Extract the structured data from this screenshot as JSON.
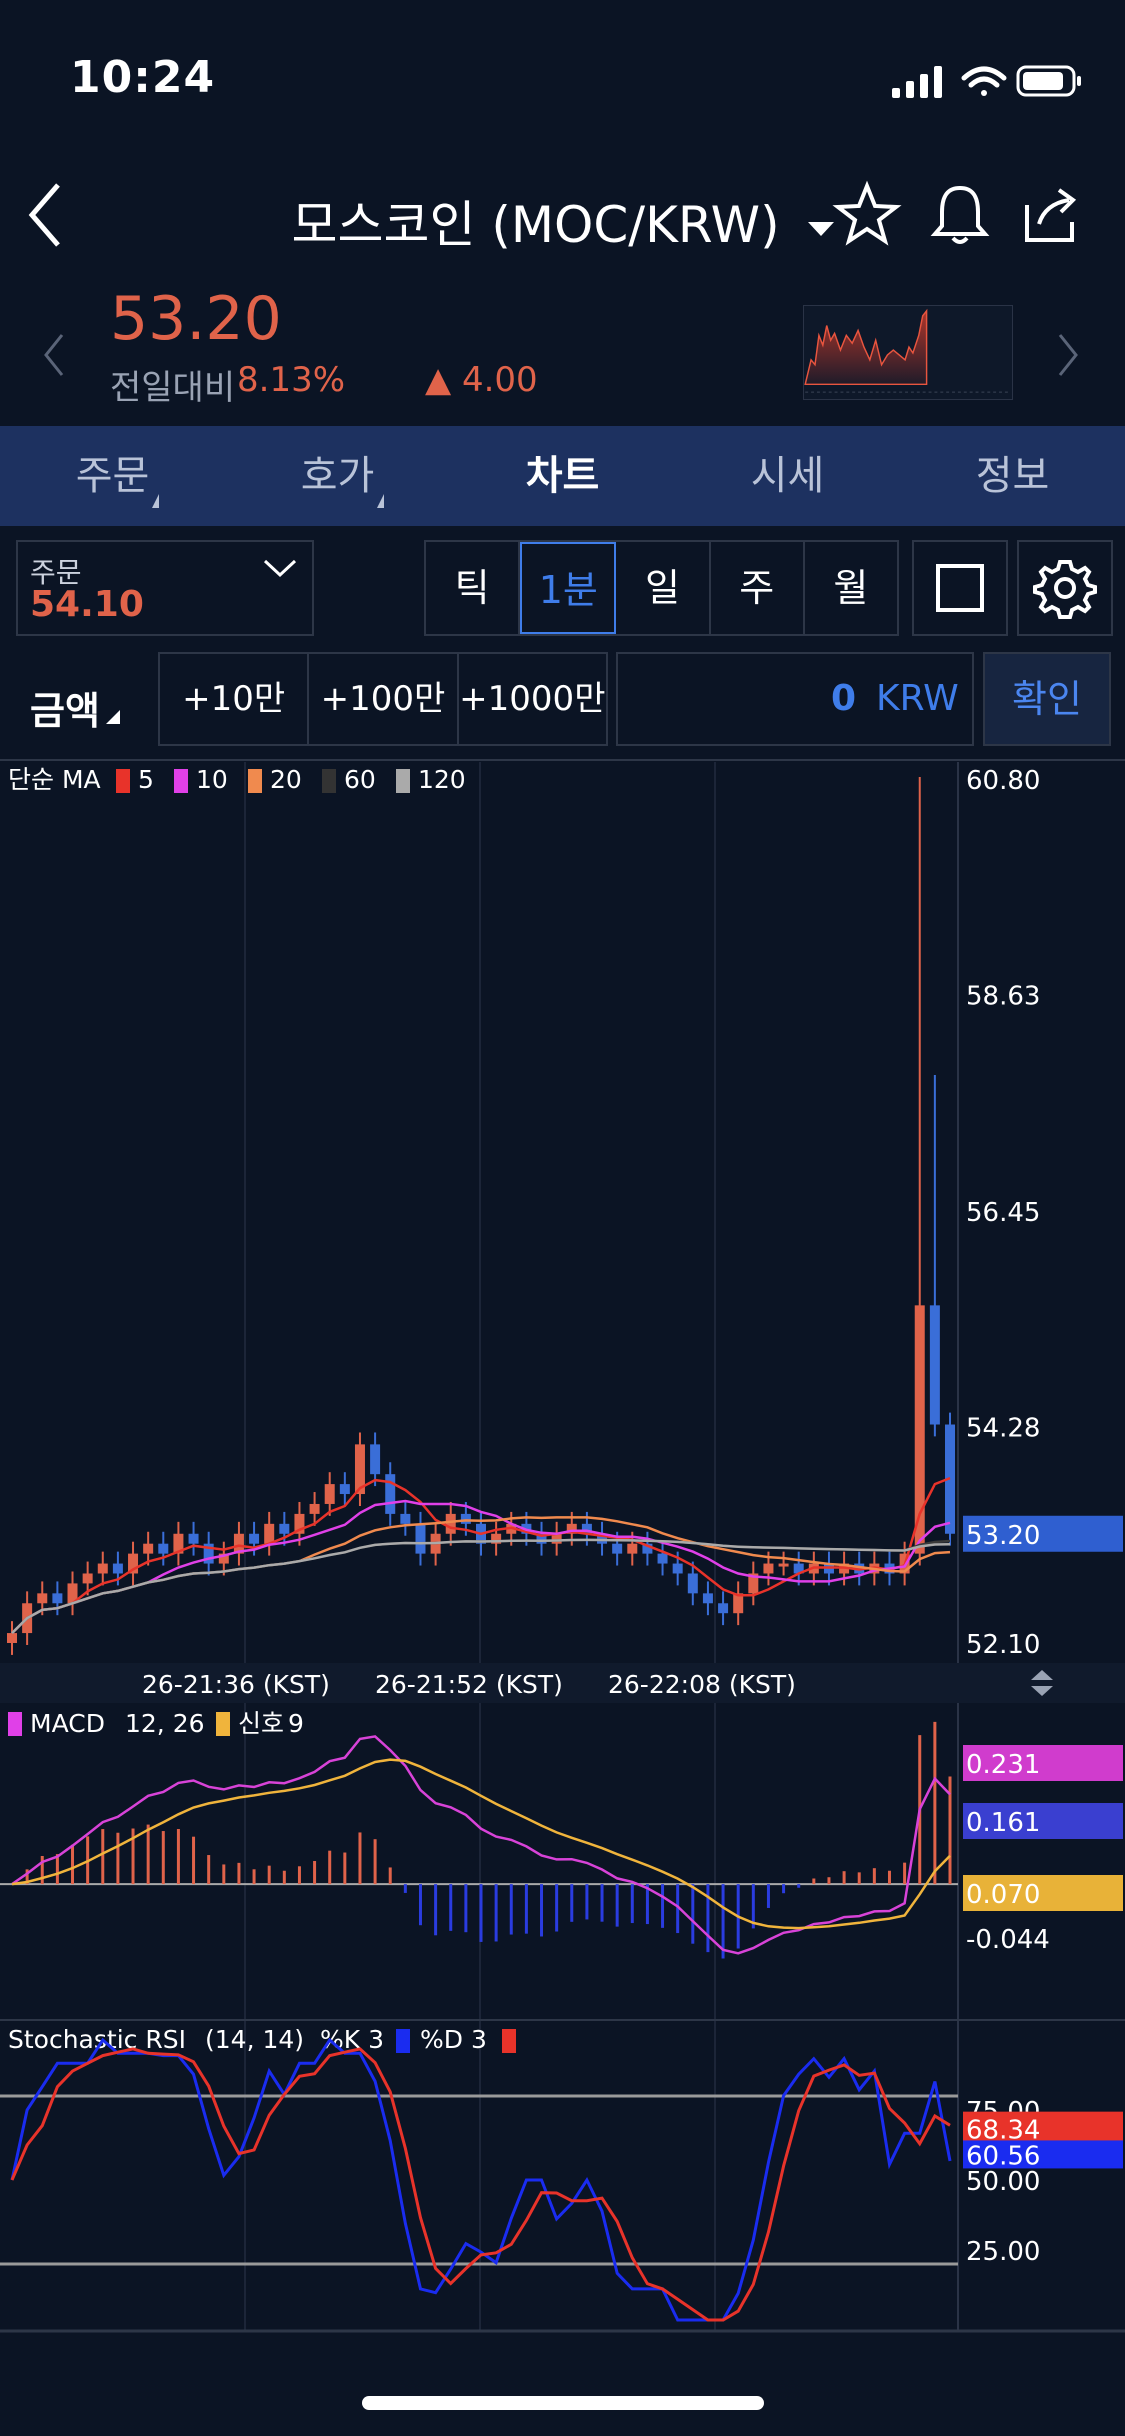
{
  "status_bar": {
    "time": "10:24"
  },
  "header": {
    "title": "모스코인 (MOC/KRW)"
  },
  "price": {
    "current": "53.20",
    "change_label": "전일대비",
    "change_pct": "8.13%",
    "change_val": "▲ 4.00"
  },
  "tabs": [
    {
      "label": "주문"
    },
    {
      "label": "호가"
    },
    {
      "label": "차트"
    },
    {
      "label": "시세"
    },
    {
      "label": "정보"
    }
  ],
  "order": {
    "label": "주문",
    "value": "54.10"
  },
  "periods": [
    "틱",
    "1분",
    "일",
    "주",
    "월"
  ],
  "amount": {
    "label": "금액",
    "buttons": [
      "+10만",
      "+100만",
      "+1000만"
    ],
    "value": "0",
    "unit": "KRW",
    "confirm": "확인"
  },
  "colors": {
    "up": "#e0634a",
    "down": "#3a6ed8",
    "accent": "#3f7dea"
  },
  "chart_data": [
    {
      "type": "candlestick",
      "legend": {
        "prefix": "단순 MA",
        "items": [
          {
            "name": "5",
            "color": "#e8332a"
          },
          {
            "name": "10",
            "color": "#e040e8"
          },
          {
            "name": "20",
            "color": "#f08a4e"
          },
          {
            "name": "60",
            "color": "#333333"
          },
          {
            "name": "120",
            "color": "#aaaaaa"
          }
        ]
      },
      "ylim": [
        52.1,
        60.8
      ],
      "y_ticks": [
        "60.80",
        "58.63",
        "56.45",
        "54.28",
        "52.10"
      ],
      "price_marker": "53.20",
      "x_ticks": [
        "26-21:36 (KST)",
        "26-21:52 (KST)",
        "26-22:08 (KST)"
      ],
      "closes": [
        52.2,
        52.5,
        52.6,
        52.5,
        52.7,
        52.8,
        52.9,
        52.8,
        53.0,
        53.1,
        53.0,
        53.2,
        53.1,
        52.9,
        53.0,
        53.2,
        53.1,
        53.3,
        53.2,
        53.4,
        53.5,
        53.7,
        53.6,
        54.1,
        53.8,
        53.4,
        53.3,
        53.0,
        53.2,
        53.4,
        53.3,
        53.1,
        53.2,
        53.3,
        53.2,
        53.1,
        53.2,
        53.3,
        53.2,
        53.1,
        53.0,
        53.1,
        53.0,
        52.9,
        52.8,
        52.6,
        52.5,
        52.4,
        52.6,
        52.8,
        52.9,
        52.9,
        52.8,
        52.9,
        52.8,
        52.9,
        52.8,
        52.9,
        52.8,
        53.0,
        55.5,
        54.3,
        53.2
      ]
    },
    {
      "type": "macd",
      "legend": {
        "name1": "MACD",
        "params": "12, 26",
        "name2": "신호",
        "p2": "9"
      },
      "y_ticks": [
        "0.231",
        "0.161",
        "0.070",
        "-0.044"
      ],
      "ylim": [
        -0.12,
        0.26
      ]
    },
    {
      "type": "stochastic_rsi",
      "legend": {
        "name": "Stochastic RSI",
        "params": "(14, 14)",
        "k": "%K 3",
        "d": "%D 3"
      },
      "y_ticks": [
        "75.00",
        "50.00",
        "25.00"
      ],
      "k_marker": "68.34",
      "d_marker": "60.56",
      "ylim": [
        0,
        100
      ]
    }
  ]
}
